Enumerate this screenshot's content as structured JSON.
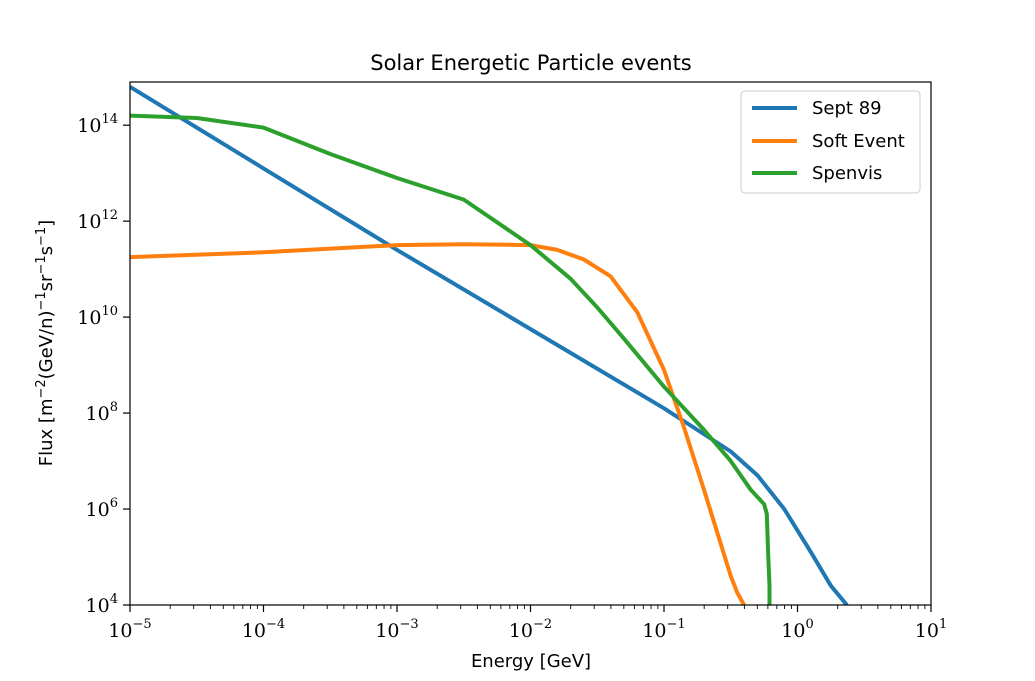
{
  "chart_data": {
    "type": "line",
    "title": "Solar Energetic Particle events",
    "xlabel": "Energy [GeV]",
    "ylabel": {
      "prefix": "Flux [m",
      "e1": "−2",
      "mid1": "(GeV/n)",
      "e2": "−1",
      "mid2": "sr",
      "e3": "−1",
      "mid3": "s",
      "e4": "−1",
      "suffix": "]"
    },
    "xscale": "log",
    "yscale": "log",
    "xlim_exp": [
      -5,
      1
    ],
    "ylim_exp": [
      4,
      14.9
    ],
    "x_ticks": [
      {
        "base": "10",
        "exp": "−5",
        "value": -5
      },
      {
        "base": "10",
        "exp": "−4",
        "value": -4
      },
      {
        "base": "10",
        "exp": "−3",
        "value": -3
      },
      {
        "base": "10",
        "exp": "−2",
        "value": -2
      },
      {
        "base": "10",
        "exp": "−1",
        "value": -1
      },
      {
        "base": "10",
        "exp": "0",
        "value": 0
      },
      {
        "base": "10",
        "exp": "1",
        "value": 1
      }
    ],
    "y_ticks": [
      {
        "base": "10",
        "exp": "4",
        "value": 4
      },
      {
        "base": "10",
        "exp": "6",
        "value": 6
      },
      {
        "base": "10",
        "exp": "8",
        "value": 8
      },
      {
        "base": "10",
        "exp": "10",
        "value": 10
      },
      {
        "base": "10",
        "exp": "12",
        "value": 12
      },
      {
        "base": "10",
        "exp": "14",
        "value": 14
      }
    ],
    "legend_position": "top-right",
    "series": [
      {
        "name": "Sept 89",
        "color": "#1f77b4",
        "log_x": [
          -5,
          -4,
          -3,
          -2,
          -1,
          -0.5,
          -0.3,
          -0.1,
          0.1,
          0.25,
          0.37
        ],
        "log_y": [
          14.8,
          13.1,
          11.4,
          9.75,
          8.1,
          7.2,
          6.7,
          6.0,
          5.1,
          4.4,
          4.0
        ]
      },
      {
        "name": "Soft Event",
        "color": "#ff7f0e",
        "log_x": [
          -5,
          -4,
          -3,
          -2.5,
          -2,
          -1.8,
          -1.6,
          -1.4,
          -1.2,
          -1,
          -0.85,
          -0.7,
          -0.6,
          -0.5,
          -0.45,
          -0.4
        ],
        "log_y": [
          11.25,
          11.35,
          11.5,
          11.52,
          11.5,
          11.4,
          11.2,
          10.85,
          10.1,
          8.9,
          7.7,
          6.4,
          5.5,
          4.6,
          4.25,
          4.0
        ]
      },
      {
        "name": "Spenvis",
        "color": "#2ca02c",
        "log_x": [
          -5,
          -4.5,
          -4,
          -3.5,
          -3,
          -2.5,
          -2,
          -1.7,
          -1.5,
          -1.3,
          -1,
          -0.7,
          -0.5,
          -0.35,
          -0.25,
          -0.23,
          -0.22,
          -0.21,
          -0.21
        ],
        "log_y": [
          14.2,
          14.15,
          13.95,
          13.4,
          12.9,
          12.45,
          11.5,
          10.8,
          10.2,
          9.55,
          8.55,
          7.65,
          7.0,
          6.4,
          6.1,
          5.9,
          5.1,
          4.4,
          4.0
        ]
      }
    ]
  }
}
